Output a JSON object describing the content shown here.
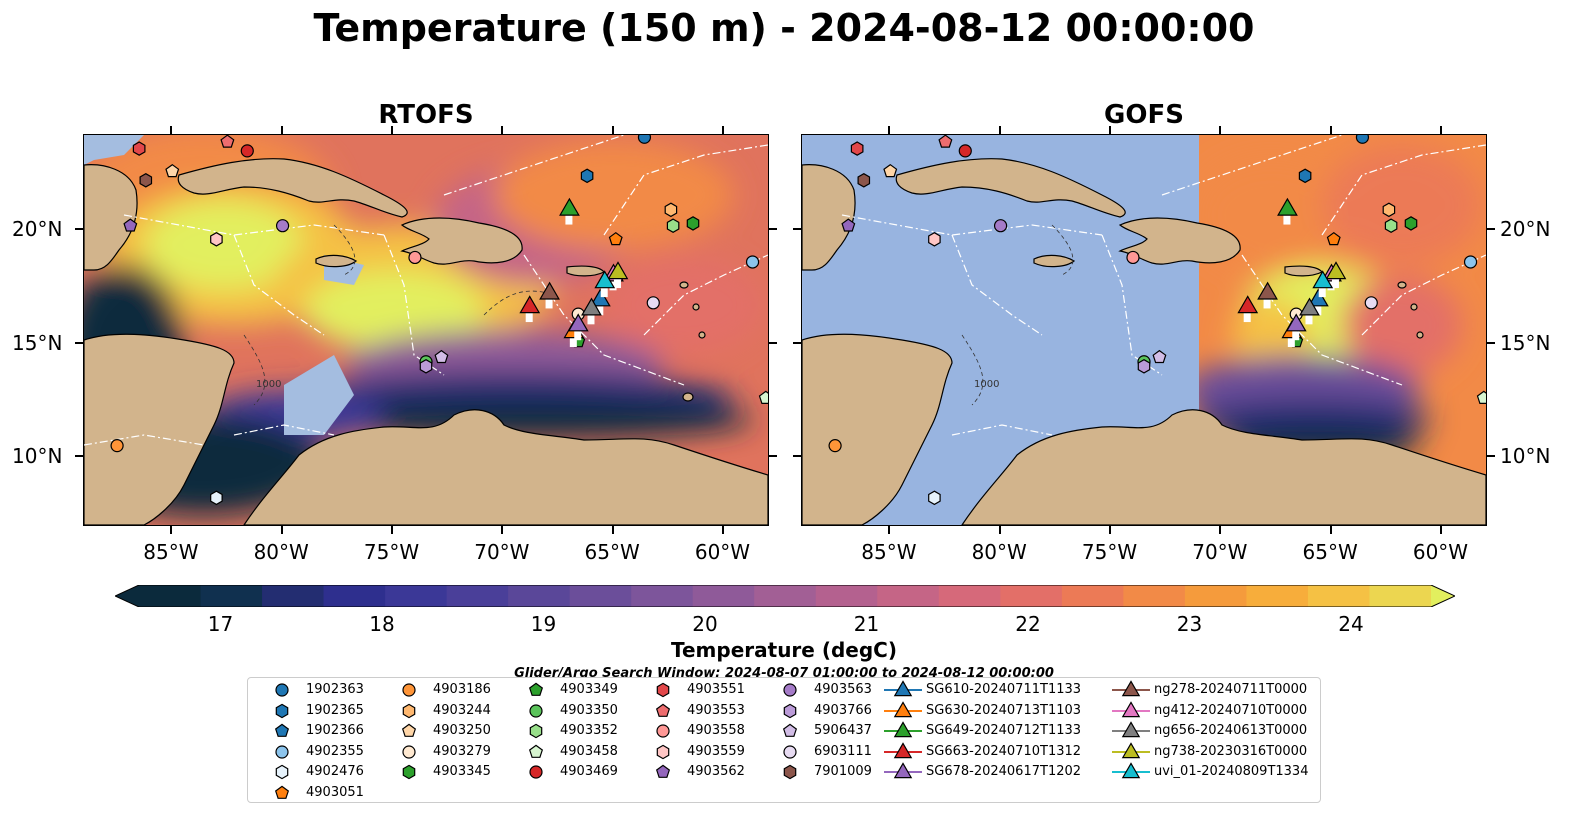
{
  "title": "Temperature (150 m) - 2024-08-12 00:00:00",
  "panels": {
    "left": {
      "title": "RTOFS"
    },
    "right": {
      "title": "GOFS"
    }
  },
  "axes": {
    "lon_labels": [
      "85°W",
      "80°W",
      "75°W",
      "70°W",
      "65°W",
      "60°W"
    ],
    "lat_labels": [
      "20°N",
      "15°N",
      "10°N"
    ],
    "lon_range": [
      -89,
      -58
    ],
    "lat_range": [
      7,
      24.2
    ]
  },
  "colorbar": {
    "label": "Temperature (degC)",
    "ticks": [
      "17",
      "18",
      "19",
      "20",
      "21",
      "22",
      "23",
      "24"
    ],
    "range": [
      16.5,
      24.5
    ],
    "colors": [
      "#0b2a3c",
      "#10304f",
      "#232d71",
      "#2e2f8e",
      "#3b3897",
      "#4a3f99",
      "#5a4799",
      "#6b4e9a",
      "#7d559b",
      "#8f5a99",
      "#a25f95",
      "#b4618f",
      "#c56586",
      "#d6697a",
      "#e36f68",
      "#ec7a56",
      "#f28a47",
      "#f59b3c",
      "#f7ad3b",
      "#f5c144",
      "#ecd650"
    ],
    "over_color": "#e2ef5e"
  },
  "search_window": "Glider/Argo Search Window: 2024-08-07 01:00:00 to 2024-08-12 00:00:00",
  "contour_label": "1000",
  "legend": {
    "columns": [
      [
        {
          "label": "1902363",
          "marker": "circle",
          "color": "#1f77b4"
        },
        {
          "label": "1902365",
          "marker": "hexagon",
          "color": "#1f77b4"
        },
        {
          "label": "1902366",
          "marker": "pentagon",
          "color": "#1f77b4"
        },
        {
          "label": "4902355",
          "marker": "circle",
          "color": "#8cc4ec"
        },
        {
          "label": "4902476",
          "marker": "hexagon",
          "color": "#e6f2fb"
        },
        {
          "label": "4903051",
          "marker": "pentagon",
          "color": "#ff7f0e"
        }
      ],
      [
        {
          "label": "4903186",
          "marker": "circle",
          "color": "#ff9538"
        },
        {
          "label": "4903244",
          "marker": "hexagon",
          "color": "#ffb870"
        },
        {
          "label": "4903250",
          "marker": "pentagon",
          "color": "#ffd6a8"
        },
        {
          "label": "4903279",
          "marker": "circle",
          "color": "#ffe9d1"
        },
        {
          "label": "4903345",
          "marker": "hexagon",
          "color": "#2ca02c"
        }
      ],
      [
        {
          "label": "4903349",
          "marker": "pentagon",
          "color": "#2ca02c"
        },
        {
          "label": "4903350",
          "marker": "circle",
          "color": "#5bc45b"
        },
        {
          "label": "4903352",
          "marker": "hexagon",
          "color": "#98df8a"
        },
        {
          "label": "4903458",
          "marker": "pentagon",
          "color": "#d7f5d0"
        },
        {
          "label": "4903469",
          "marker": "circle",
          "color": "#d62728"
        }
      ],
      [
        {
          "label": "4903551",
          "marker": "hexagon",
          "color": "#e2474a"
        },
        {
          "label": "4903553",
          "marker": "pentagon",
          "color": "#ee6d6f"
        },
        {
          "label": "4903558",
          "marker": "circle",
          "color": "#ff9896"
        },
        {
          "label": "4903559",
          "marker": "hexagon",
          "color": "#ffc6c5"
        },
        {
          "label": "4903562",
          "marker": "pentagon",
          "color": "#9467bd"
        }
      ],
      [
        {
          "label": "4903563",
          "marker": "circle",
          "color": "#a57bc8"
        },
        {
          "label": "4903766",
          "marker": "hexagon",
          "color": "#bb9bd8"
        },
        {
          "label": "5906437",
          "marker": "pentagon",
          "color": "#d2bde6"
        },
        {
          "label": "6903111",
          "marker": "circle",
          "color": "#e7dbf2"
        },
        {
          "label": "7901009",
          "marker": "hexagon",
          "color": "#8c564b"
        }
      ],
      [
        {
          "label": "SG610-20240711T1133",
          "marker": "triangle-line",
          "color": "#1f77b4"
        },
        {
          "label": "SG630-20240713T1103",
          "marker": "triangle-line",
          "color": "#ff7f0e"
        },
        {
          "label": "SG649-20240712T1133",
          "marker": "triangle-line",
          "color": "#2ca02c"
        },
        {
          "label": "SG663-20240710T1312",
          "marker": "triangle-line",
          "color": "#d62728"
        },
        {
          "label": "SG678-20240617T1202",
          "marker": "triangle-line",
          "color": "#9467bd"
        }
      ],
      [
        {
          "label": "ng278-20240711T0000",
          "marker": "triangle-line",
          "color": "#8c564b"
        },
        {
          "label": "ng412-20240710T0000",
          "marker": "triangle-line",
          "color": "#e377c2"
        },
        {
          "label": "ng656-20240613T0000",
          "marker": "triangle-line",
          "color": "#7f7f7f"
        },
        {
          "label": "ng738-20230316T0000",
          "marker": "triangle-line",
          "color": "#bcbd22"
        },
        {
          "label": "uvi_01-20240809T1334",
          "marker": "triangle-line",
          "color": "#17becf"
        }
      ]
    ]
  },
  "floats": [
    {
      "id": "1902363",
      "lon": -63.6,
      "lat": 24.1
    },
    {
      "id": "1902365",
      "lon": -66.2,
      "lat": 22.4
    },
    {
      "id": "4902355",
      "lon": -58.7,
      "lat": 18.6
    },
    {
      "id": "4902476",
      "lon": -83.0,
      "lat": 8.2
    },
    {
      "id": "4903186",
      "lon": -87.5,
      "lat": 10.5
    },
    {
      "id": "4903244",
      "lon": -62.4,
      "lat": 20.9
    },
    {
      "id": "4903250",
      "lon": -85.0,
      "lat": 22.6
    },
    {
      "id": "4903279",
      "lon": -66.6,
      "lat": 16.3
    },
    {
      "id": "4903051",
      "lon": -64.9,
      "lat": 19.6
    },
    {
      "id": "4903345",
      "lon": -61.4,
      "lat": 20.3
    },
    {
      "id": "4903349",
      "lon": -66.6,
      "lat": 15.1
    },
    {
      "id": "4903350",
      "lon": -73.5,
      "lat": 14.2
    },
    {
      "id": "4903352",
      "lon": -62.3,
      "lat": 20.2
    },
    {
      "id": "4903458",
      "lon": -58.1,
      "lat": 12.6
    },
    {
      "id": "4903469",
      "lon": -81.6,
      "lat": 23.5
    },
    {
      "id": "4903551",
      "lon": -86.5,
      "lat": 23.6
    },
    {
      "id": "4903553",
      "lon": -82.5,
      "lat": 23.9
    },
    {
      "id": "4903558",
      "lon": -74.0,
      "lat": 18.8
    },
    {
      "id": "4903559",
      "lon": -83.0,
      "lat": 19.6
    },
    {
      "id": "4903562",
      "lon": -86.9,
      "lat": 20.2
    },
    {
      "id": "4903563",
      "lon": -80.0,
      "lat": 20.2
    },
    {
      "id": "4903766",
      "lon": -73.5,
      "lat": 14.0
    },
    {
      "id": "5906437",
      "lon": -72.8,
      "lat": 14.4
    },
    {
      "id": "6903111",
      "lon": -63.2,
      "lat": 16.8
    },
    {
      "id": "7901009",
      "lon": -86.2,
      "lat": 22.2
    }
  ],
  "gliders": [
    {
      "id": "SG610-20240711T1133",
      "lon": -65.6,
      "lat": 17.0
    },
    {
      "id": "SG630-20240713T1103",
      "lon": -66.8,
      "lat": 15.6
    },
    {
      "id": "SG649-20240712T1133",
      "lon": -67.0,
      "lat": 21.0
    },
    {
      "id": "SG663-20240710T1312",
      "lon": -68.8,
      "lat": 16.7
    },
    {
      "id": "SG678-20240617T1202",
      "lon": -66.6,
      "lat": 15.9
    },
    {
      "id": "ng278-20240711T0000",
      "lon": -67.9,
      "lat": 17.3
    },
    {
      "id": "ng412-20240710T0000",
      "lon": -65.0,
      "lat": 18.1
    },
    {
      "id": "ng656-20240613T0000",
      "lon": -66.0,
      "lat": 16.6
    },
    {
      "id": "ng738-20230316T0000",
      "lon": -64.8,
      "lat": 18.2
    },
    {
      "id": "uvi_01-20240809T1334",
      "lon": -65.4,
      "lat": 17.8
    }
  ]
}
